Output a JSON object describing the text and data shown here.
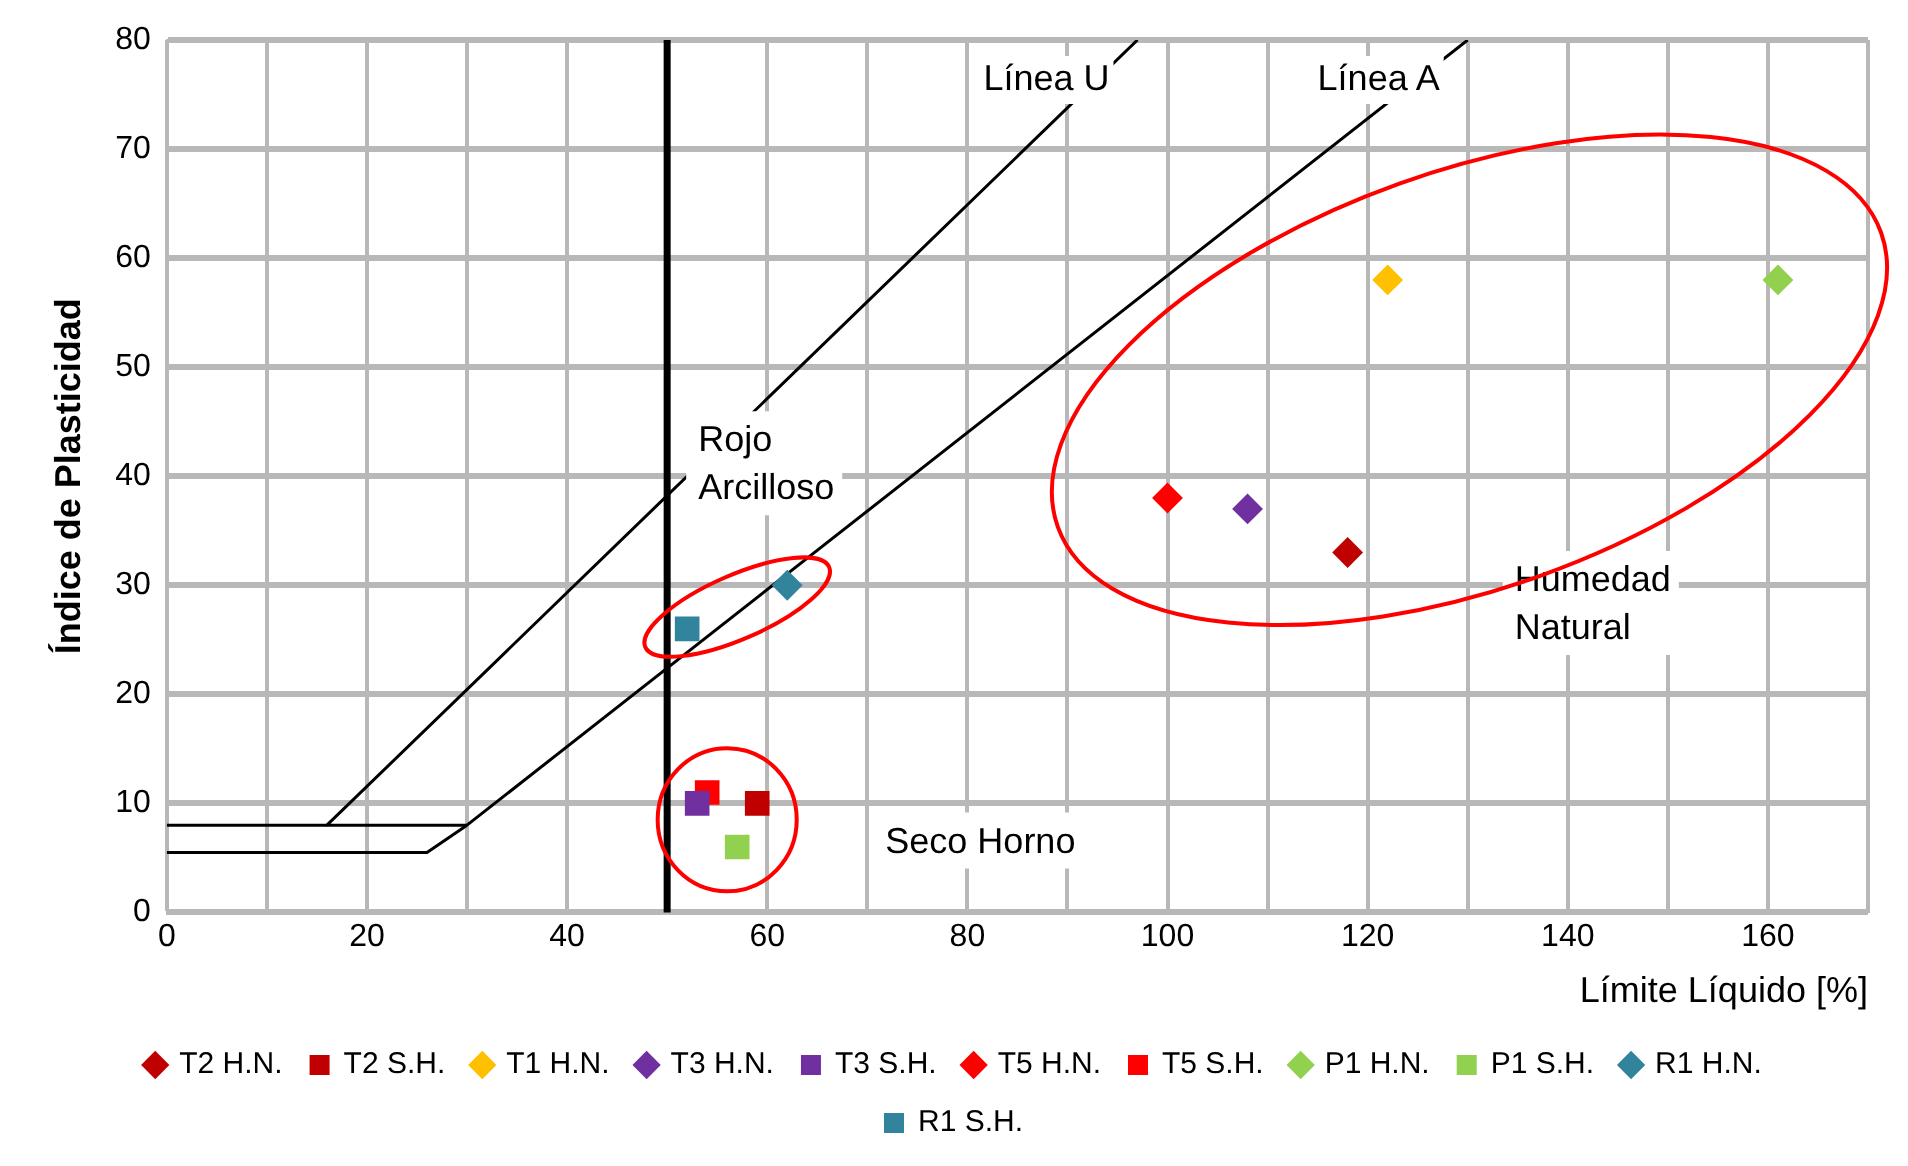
{
  "chart_data": {
    "type": "scatter",
    "xlabel": "Límite Líquido [%]",
    "ylabel": "Índice de Plasticidad",
    "xlim": [
      0,
      170
    ],
    "ylim": [
      0,
      80
    ],
    "xticks": [
      0,
      {
        "value": 10,
        "label": null
      },
      20,
      {
        "value": 30,
        "label": null
      },
      40,
      {
        "value": 50,
        "label": null
      },
      60,
      {
        "value": 70,
        "label": null
      },
      80,
      {
        "value": 90,
        "label": null
      },
      100,
      {
        "value": 110,
        "label": null
      },
      120,
      {
        "value": 130,
        "label": null
      },
      140,
      {
        "value": 150,
        "label": null
      },
      160,
      {
        "value": 170,
        "label": null
      }
    ],
    "yticks": [
      0,
      10,
      20,
      30,
      40,
      50,
      60,
      70,
      80
    ],
    "grid": true,
    "legend": "bottom",
    "series": [
      {
        "name": "T2 H.N.",
        "color": "#c00000",
        "marker": "diamond",
        "x": [
          118
        ],
        "values": [
          33
        ]
      },
      {
        "name": "T2 S.H.",
        "color": "#c00000",
        "marker": "square",
        "x": [
          59
        ],
        "values": [
          10
        ]
      },
      {
        "name": "T1 H.N.",
        "color": "#ffc000",
        "marker": "diamond",
        "x": [
          122
        ],
        "values": [
          58
        ]
      },
      {
        "name": "T3 H.N.",
        "color": "#7030a0",
        "marker": "diamond",
        "x": [
          108
        ],
        "values": [
          37
        ]
      },
      {
        "name": "T3 S.H.",
        "color": "#7030a0",
        "marker": "square",
        "x": [
          53
        ],
        "values": [
          10
        ]
      },
      {
        "name": "T5 H.N.",
        "color": "#ff0000",
        "marker": "diamond",
        "x": [
          100
        ],
        "values": [
          38
        ]
      },
      {
        "name": "T5 S.H.",
        "color": "#ff0000",
        "marker": "square",
        "x": [
          54
        ],
        "values": [
          11
        ]
      },
      {
        "name": "P1 H.N.",
        "color": "#92d050",
        "marker": "diamond",
        "x": [
          161
        ],
        "values": [
          58
        ]
      },
      {
        "name": "P1 S.H.",
        "color": "#92d050",
        "marker": "square",
        "x": [
          57
        ],
        "values": [
          6
        ]
      },
      {
        "name": "R1 H.N.",
        "color": "#31849b",
        "marker": "diamond",
        "x": [
          62
        ],
        "values": [
          30
        ]
      },
      {
        "name": "R1 S.H.",
        "color": "#31849b",
        "marker": "square",
        "x": [
          52
        ],
        "values": [
          26
        ]
      },
      {
        "name": "Línea U",
        "type": "line",
        "color": "#000000",
        "marker": "none",
        "x": [
          30,
          16,
          97
        ],
        "values": [
          8,
          8,
          80
        ]
      },
      {
        "name": "Línea A",
        "type": "line",
        "color": "#000000",
        "marker": "none",
        "x": [
          0,
          26,
          30,
          130
        ],
        "values": [
          5.5,
          5.5,
          8,
          80
        ]
      },
      {
        "type": "line",
        "color": "#000000",
        "marker": "none",
        "x": [
          0,
          16
        ],
        "values": [
          8,
          8
        ]
      }
    ],
    "ref_lines": [
      {
        "axis": "x",
        "value": 50,
        "color": "#000000"
      }
    ],
    "annotations": [
      "Rojo Arcilloso",
      "Seco Horno",
      "Humedad Natural"
    ]
  }
}
